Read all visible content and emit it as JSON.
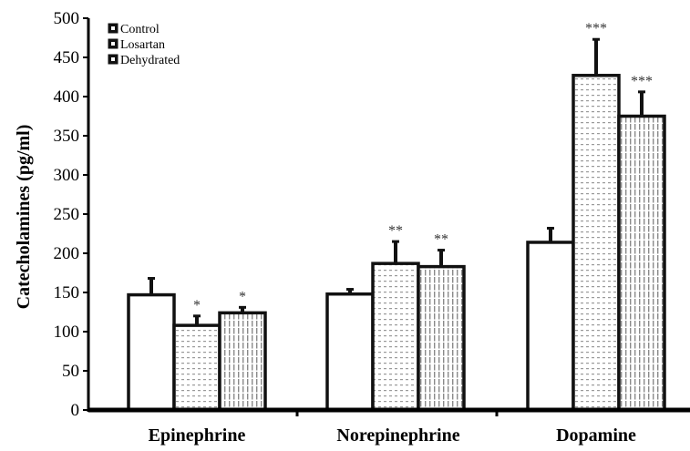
{
  "chart_data": {
    "type": "bar",
    "title": "",
    "xlabel": "",
    "ylabel": "Catecholamines (pg/ml)",
    "ylim": [
      0,
      500
    ],
    "yticks": [
      0,
      50,
      100,
      150,
      200,
      250,
      300,
      350,
      400,
      450,
      500
    ],
    "categories": [
      "Epinephrine",
      "Norepinephrine",
      "Dopamine"
    ],
    "legend_position": "top-left",
    "grid": false,
    "series": [
      {
        "name": "Control",
        "pattern": "solid-white",
        "values": [
          147,
          148,
          214
        ],
        "errors": [
          21,
          6,
          18
        ],
        "significance": [
          "",
          "",
          ""
        ]
      },
      {
        "name": "Losartan",
        "pattern": "dotted",
        "values": [
          108,
          187,
          427
        ],
        "errors": [
          12,
          28,
          46
        ],
        "significance": [
          "*",
          "**",
          "***"
        ]
      },
      {
        "name": "Dehydrated",
        "pattern": "vertical-lines",
        "values": [
          124,
          183,
          375
        ],
        "errors": [
          7,
          21,
          31
        ],
        "significance": [
          "*",
          "**",
          "***"
        ]
      }
    ]
  },
  "colors": {
    "bar_stroke": "#111111",
    "error_bar": "#111111",
    "axis": "#000000",
    "dots": "#9a9a9a",
    "vlines": "#8a8a8a"
  }
}
